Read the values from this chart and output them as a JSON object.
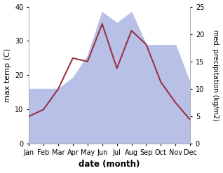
{
  "months": [
    "Jan",
    "Feb",
    "Mar",
    "Apr",
    "May",
    "Jun",
    "Jul",
    "Aug",
    "Sep",
    "Oct",
    "Nov",
    "Dec"
  ],
  "temperature": [
    8,
    10,
    16,
    25,
    24,
    35,
    22,
    33,
    29,
    18,
    12,
    7
  ],
  "precipitation": [
    10,
    10,
    10,
    12,
    16,
    24,
    22,
    24,
    18,
    18,
    18,
    11
  ],
  "temp_color": "#993344",
  "precip_fill_color": "#b8c0e8",
  "xlabel": "date (month)",
  "ylabel_left": "max temp (C)",
  "ylabel_right": "med. precipitation (kg/m2)",
  "ylim_left": [
    0,
    40
  ],
  "ylim_right": [
    0,
    25
  ],
  "yticks_left": [
    0,
    10,
    20,
    30,
    40
  ],
  "yticks_right": [
    0,
    5,
    10,
    15,
    20,
    25
  ]
}
